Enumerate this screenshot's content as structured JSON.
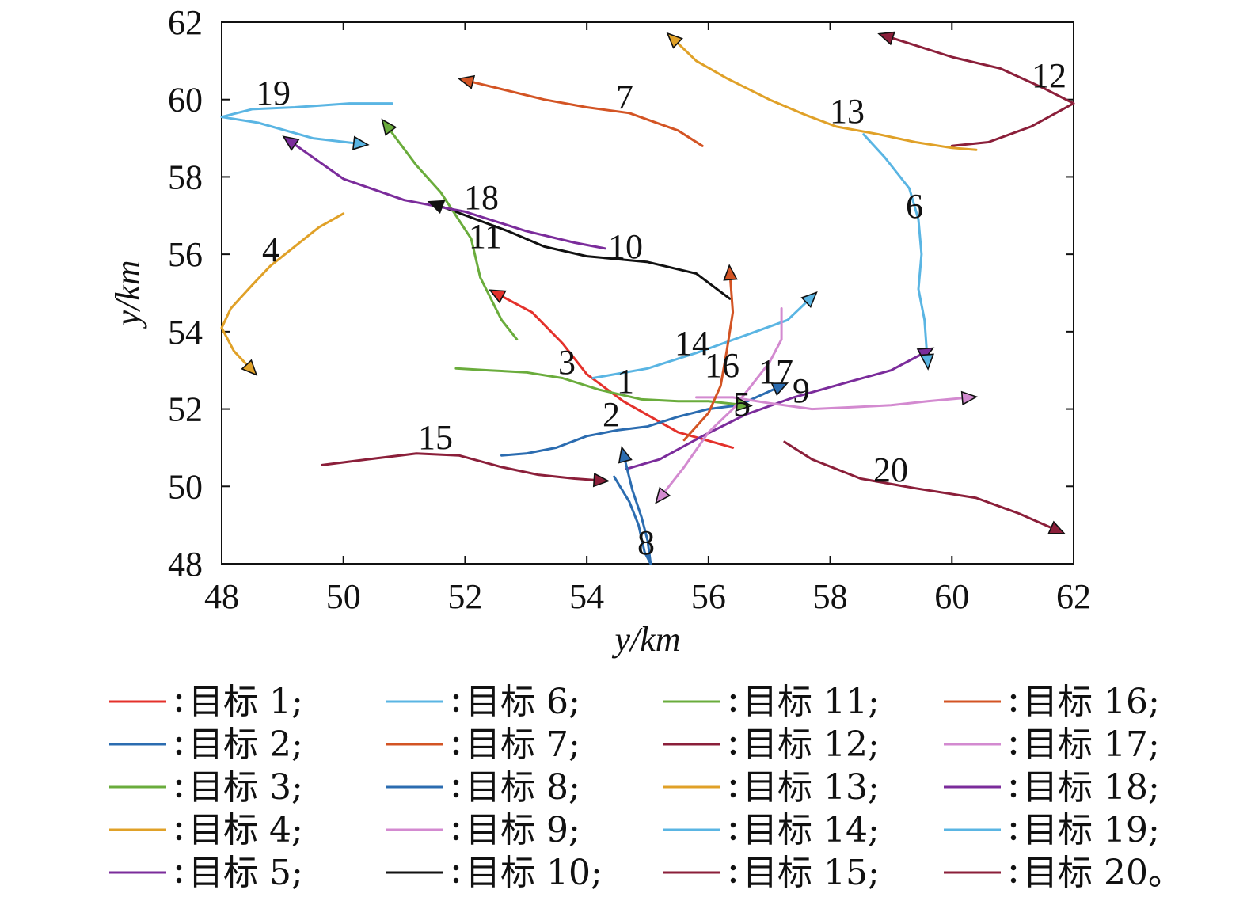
{
  "chart_data": {
    "type": "line",
    "xlabel": "y/km",
    "ylabel": "y/km",
    "xlim": [
      48,
      62
    ],
    "ylim": [
      48,
      62
    ],
    "xticks": [
      "48",
      "50",
      "52",
      "54",
      "56",
      "58",
      "60",
      "62"
    ],
    "yticks": [
      "48",
      "50",
      "52",
      "54",
      "56",
      "58",
      "60",
      "62"
    ],
    "series": [
      {
        "id": "1",
        "name": "目标 1;",
        "color": "#e4312b",
        "points": [
          [
            56.4,
            51.0
          ],
          [
            55.5,
            51.4
          ],
          [
            54.6,
            52.2
          ],
          [
            54.0,
            52.9
          ],
          [
            53.6,
            53.7
          ],
          [
            53.1,
            54.5
          ],
          [
            52.5,
            55.0
          ]
        ]
      },
      {
        "id": "2",
        "name": "目标 2;",
        "color": "#2b6cb0",
        "points": [
          [
            52.6,
            50.8
          ],
          [
            53.0,
            50.85
          ],
          [
            53.5,
            51.0
          ],
          [
            54.0,
            51.3
          ],
          [
            54.5,
            51.45
          ],
          [
            55.0,
            51.55
          ],
          [
            55.5,
            51.8
          ],
          [
            56.0,
            52.0
          ],
          [
            56.5,
            52.1
          ],
          [
            57.2,
            52.6
          ]
        ]
      },
      {
        "id": "3",
        "name": "目标 3;",
        "color": "#6aac3c",
        "points": [
          [
            51.85,
            53.05
          ],
          [
            52.4,
            53.0
          ],
          [
            53.0,
            52.95
          ],
          [
            53.6,
            52.8
          ],
          [
            54.2,
            52.5
          ],
          [
            54.9,
            52.25
          ],
          [
            55.5,
            52.2
          ],
          [
            56.0,
            52.2
          ],
          [
            56.6,
            52.1
          ]
        ]
      },
      {
        "id": "4",
        "name": "目标 4;",
        "color": "#e0a128",
        "points": [
          [
            50.0,
            57.05
          ],
          [
            49.6,
            56.7
          ],
          [
            49.2,
            56.2
          ],
          [
            48.8,
            55.7
          ],
          [
            48.5,
            55.2
          ],
          [
            48.15,
            54.6
          ],
          [
            48.0,
            54.1
          ],
          [
            48.2,
            53.5
          ],
          [
            48.5,
            53.0
          ]
        ]
      },
      {
        "id": "5",
        "name": "目标 5;",
        "color": "#7b2c9b",
        "points": [
          [
            54.65,
            50.45
          ],
          [
            55.2,
            50.7
          ],
          [
            55.9,
            51.3
          ],
          [
            56.6,
            51.85
          ],
          [
            57.4,
            52.3
          ],
          [
            58.3,
            52.7
          ],
          [
            59.0,
            53.0
          ],
          [
            59.6,
            53.5
          ]
        ]
      },
      {
        "id": "6",
        "name": "目标 6;",
        "color": "#5ab5e3",
        "points": [
          [
            58.55,
            59.1
          ],
          [
            58.9,
            58.5
          ],
          [
            59.3,
            57.7
          ],
          [
            59.45,
            56.9
          ],
          [
            59.5,
            56.0
          ],
          [
            59.45,
            55.1
          ],
          [
            59.55,
            54.3
          ],
          [
            59.6,
            53.2
          ]
        ]
      },
      {
        "id": "7",
        "name": "目标 7;",
        "color": "#d35424",
        "points": [
          [
            55.9,
            58.8
          ],
          [
            55.5,
            59.2
          ],
          [
            54.7,
            59.65
          ],
          [
            54.0,
            59.8
          ],
          [
            53.3,
            60.0
          ],
          [
            52.0,
            60.5
          ]
        ]
      },
      {
        "id": "8",
        "name": "目标 8;",
        "color": "#2b6cb0",
        "points": [
          [
            54.45,
            50.25
          ],
          [
            54.7,
            49.6
          ],
          [
            54.85,
            49.0
          ],
          [
            54.95,
            48.3
          ],
          [
            55.05,
            48.0
          ],
          [
            55.0,
            48.6
          ],
          [
            54.9,
            49.2
          ],
          [
            54.75,
            49.9
          ],
          [
            54.6,
            50.85
          ]
        ]
      },
      {
        "id": "9",
        "name": "目标 9;",
        "color": "#d38ad0",
        "points": [
          [
            55.8,
            52.3
          ],
          [
            56.4,
            52.3
          ],
          [
            57.0,
            52.15
          ],
          [
            57.7,
            52.0
          ],
          [
            58.4,
            52.05
          ],
          [
            59.0,
            52.1
          ],
          [
            59.6,
            52.2
          ],
          [
            60.3,
            52.3
          ]
        ]
      },
      {
        "id": "10",
        "name": "目标 10;",
        "color": "#111111",
        "points": [
          [
            56.35,
            54.85
          ],
          [
            55.8,
            55.5
          ],
          [
            55.0,
            55.8
          ],
          [
            54.0,
            55.95
          ],
          [
            53.3,
            56.2
          ],
          [
            52.7,
            56.6
          ],
          [
            51.5,
            57.3
          ]
        ]
      },
      {
        "id": "11",
        "name": "目标 11;",
        "color": "#6aac3c",
        "points": [
          [
            52.85,
            53.8
          ],
          [
            52.6,
            54.3
          ],
          [
            52.25,
            55.4
          ],
          [
            52.1,
            56.4
          ],
          [
            51.6,
            57.6
          ],
          [
            51.2,
            58.3
          ],
          [
            50.7,
            59.35
          ]
        ]
      },
      {
        "id": "12",
        "name": "目标 12;",
        "color": "#8b1f3a",
        "points": [
          [
            60.0,
            58.8
          ],
          [
            60.6,
            58.9
          ],
          [
            61.3,
            59.3
          ],
          [
            62.0,
            59.9
          ],
          [
            61.5,
            60.3
          ],
          [
            60.8,
            60.8
          ],
          [
            60.0,
            61.1
          ],
          [
            59.2,
            61.5
          ],
          [
            58.9,
            61.65
          ]
        ]
      },
      {
        "id": "13",
        "name": "目标 13;",
        "color": "#e0a128",
        "points": [
          [
            60.4,
            58.7
          ],
          [
            60.0,
            58.75
          ],
          [
            59.4,
            58.9
          ],
          [
            58.8,
            59.1
          ],
          [
            58.1,
            59.3
          ],
          [
            57.6,
            59.6
          ],
          [
            57.0,
            60.0
          ],
          [
            56.3,
            60.55
          ],
          [
            55.8,
            61.0
          ],
          [
            55.4,
            61.6
          ]
        ]
      },
      {
        "id": "14",
        "name": "目标 14;",
        "color": "#5ab5e3",
        "points": [
          [
            54.1,
            52.8
          ],
          [
            55.0,
            53.05
          ],
          [
            55.8,
            53.45
          ],
          [
            56.6,
            53.9
          ],
          [
            57.3,
            54.3
          ],
          [
            57.7,
            54.9
          ]
        ]
      },
      {
        "id": "15",
        "name": "目标 15;",
        "color": "#8b1f3a",
        "points": [
          [
            49.65,
            50.55
          ],
          [
            50.4,
            50.7
          ],
          [
            51.2,
            50.85
          ],
          [
            51.9,
            50.8
          ],
          [
            52.6,
            50.5
          ],
          [
            53.2,
            50.3
          ],
          [
            53.8,
            50.2
          ],
          [
            54.25,
            50.15
          ]
        ]
      },
      {
        "id": "16",
        "name": "目标 16;",
        "color": "#d35424",
        "points": [
          [
            55.6,
            51.2
          ],
          [
            56.0,
            51.9
          ],
          [
            56.2,
            52.6
          ],
          [
            56.3,
            53.5
          ],
          [
            56.4,
            54.5
          ],
          [
            56.35,
            55.55
          ]
        ]
      },
      {
        "id": "17",
        "name": "目标 17;",
        "color": "#d38ad0",
        "points": [
          [
            57.2,
            54.6
          ],
          [
            57.2,
            53.8
          ],
          [
            57.0,
            53.2
          ],
          [
            56.7,
            52.6
          ],
          [
            56.4,
            52.0
          ],
          [
            56.0,
            51.4
          ],
          [
            55.6,
            50.5
          ],
          [
            55.2,
            49.7
          ]
        ]
      },
      {
        "id": "18",
        "name": "目标 18;",
        "color": "#7b2c9b",
        "points": [
          [
            54.3,
            56.15
          ],
          [
            53.8,
            56.3
          ],
          [
            53.0,
            56.6
          ],
          [
            52.0,
            57.1
          ],
          [
            51.0,
            57.4
          ],
          [
            50.0,
            57.95
          ],
          [
            49.1,
            58.95
          ]
        ]
      },
      {
        "id": "19",
        "name": "目标 19;",
        "color": "#5ab5e3",
        "points": [
          [
            50.8,
            59.9
          ],
          [
            50.1,
            59.9
          ],
          [
            49.2,
            59.8
          ],
          [
            48.5,
            59.75
          ],
          [
            48.0,
            59.55
          ],
          [
            48.6,
            59.4
          ],
          [
            49.5,
            59.0
          ],
          [
            50.3,
            58.85
          ]
        ]
      },
      {
        "id": "20",
        "name": "目标 20。",
        "color": "#8b1f3a",
        "points": [
          [
            57.25,
            51.15
          ],
          [
            57.7,
            50.7
          ],
          [
            58.5,
            50.2
          ],
          [
            59.4,
            49.95
          ],
          [
            60.4,
            49.7
          ],
          [
            61.1,
            49.3
          ],
          [
            61.75,
            48.85
          ]
        ]
      }
    ],
    "legend": {
      "position": "bottom",
      "columns": 4
    }
  }
}
